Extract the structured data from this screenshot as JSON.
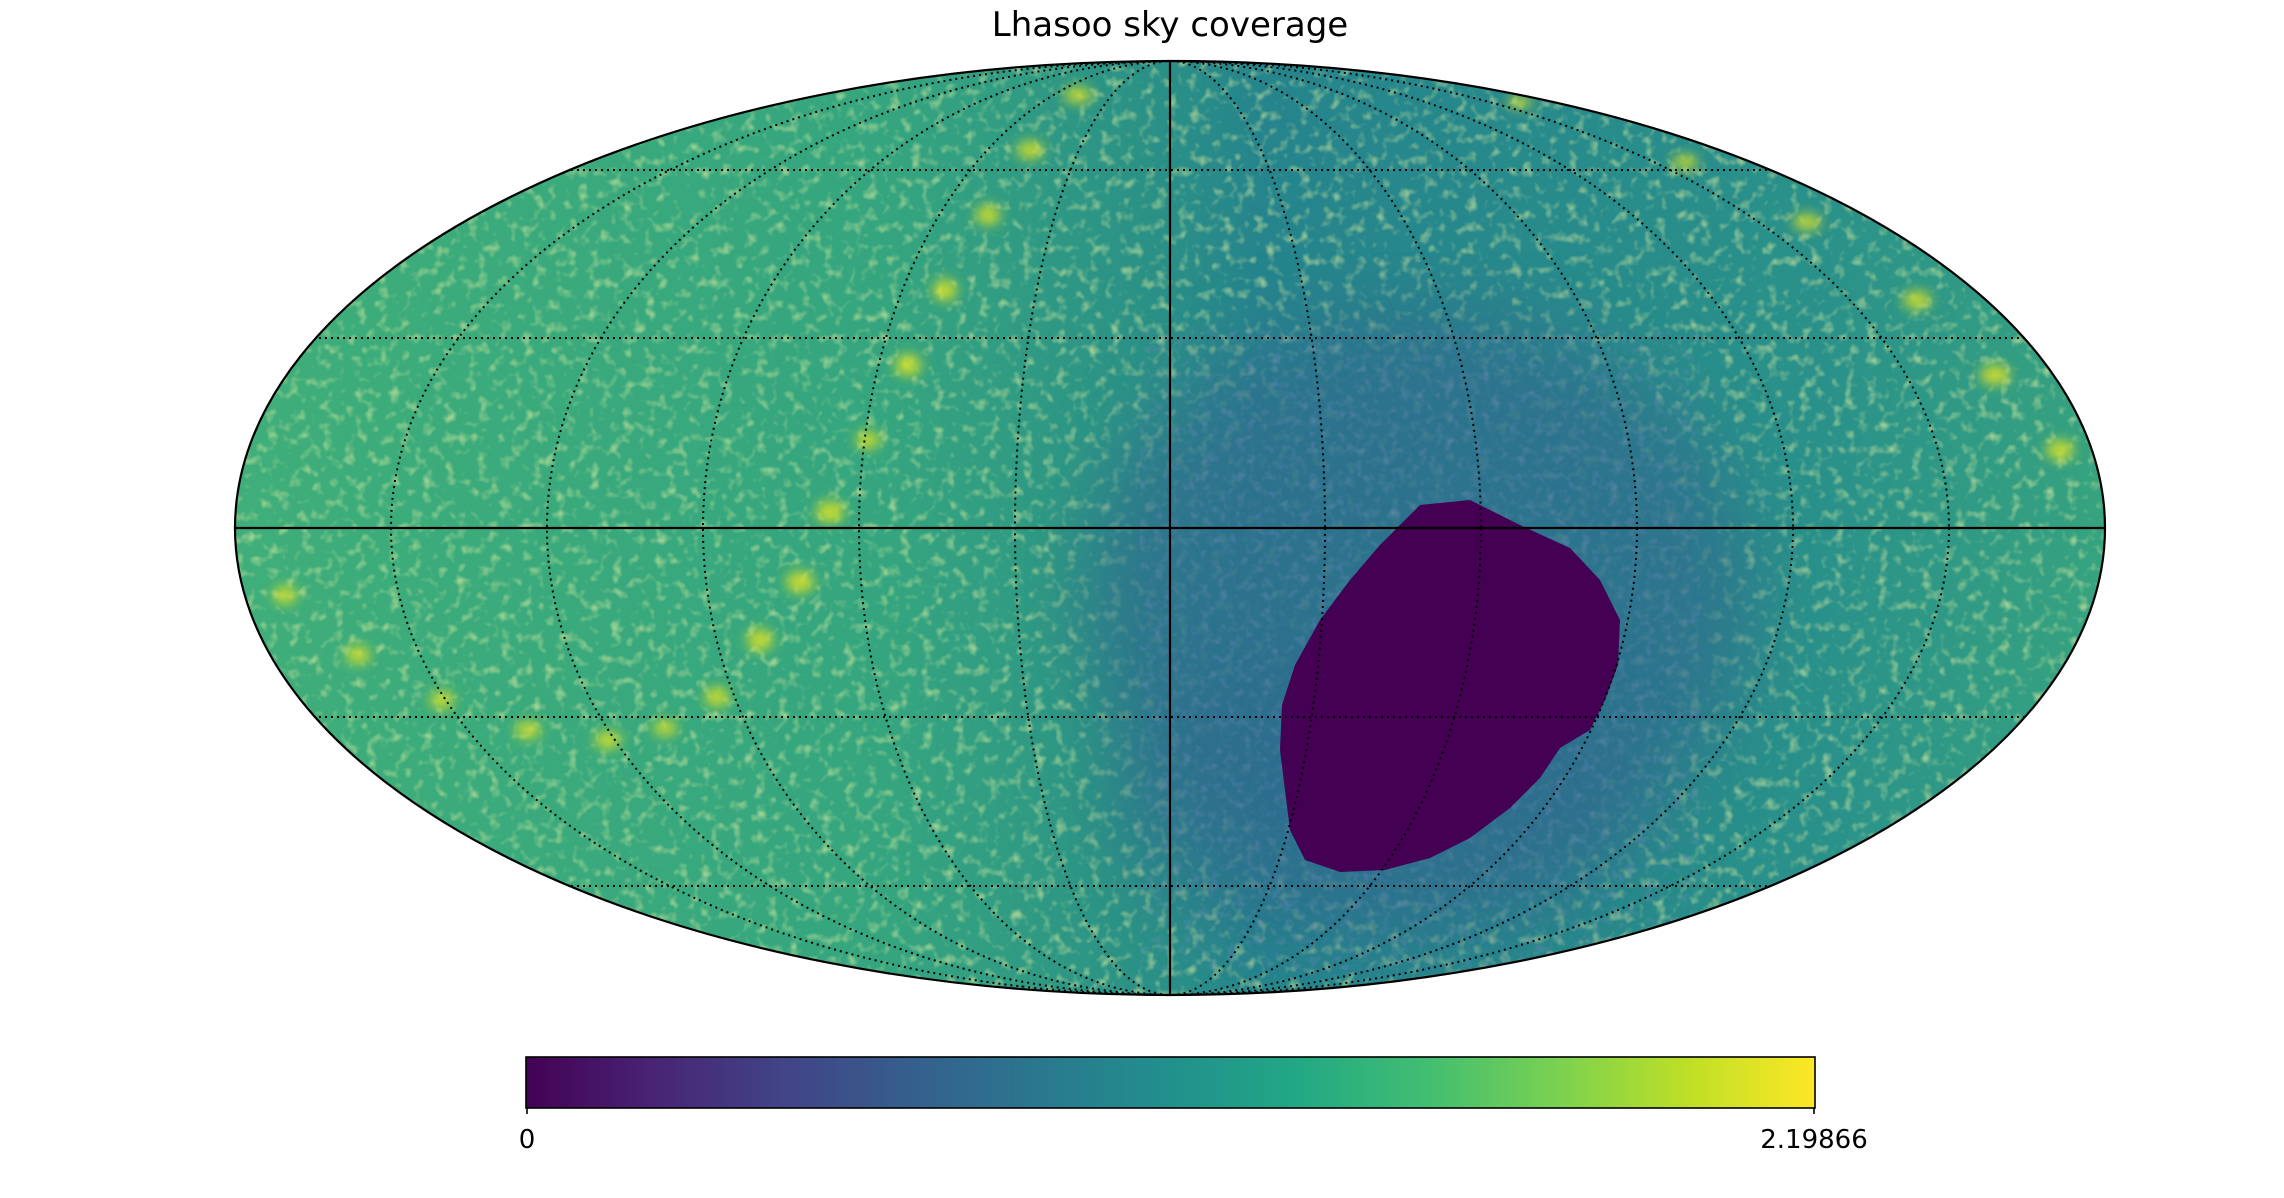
{
  "chart_data": {
    "type": "heatmap",
    "projection": "mollweide",
    "title": "Lhasoo sky coverage",
    "colormap": "viridis",
    "colorbar": {
      "min": 0,
      "max": 2.19866,
      "min_label": "0",
      "max_label": "2.19866",
      "placement": "bottom"
    },
    "graticule": {
      "meridian_step_deg": 30,
      "parallel_step_deg": 30,
      "style": "dotted"
    },
    "features": [
      {
        "kind": "zero-coverage region",
        "center_lon_deg": -50,
        "center_lat_deg": -25,
        "value": 0
      },
      {
        "kind": "bright band",
        "value_range": [
          1.8,
          2.19866
        ]
      }
    ],
    "background_value_left": 1.55,
    "background_value_right": 1.05
  },
  "colors": {
    "viridis_stops": [
      "#440154",
      "#3b528b",
      "#21908d",
      "#5dc963",
      "#fde725"
    ]
  }
}
